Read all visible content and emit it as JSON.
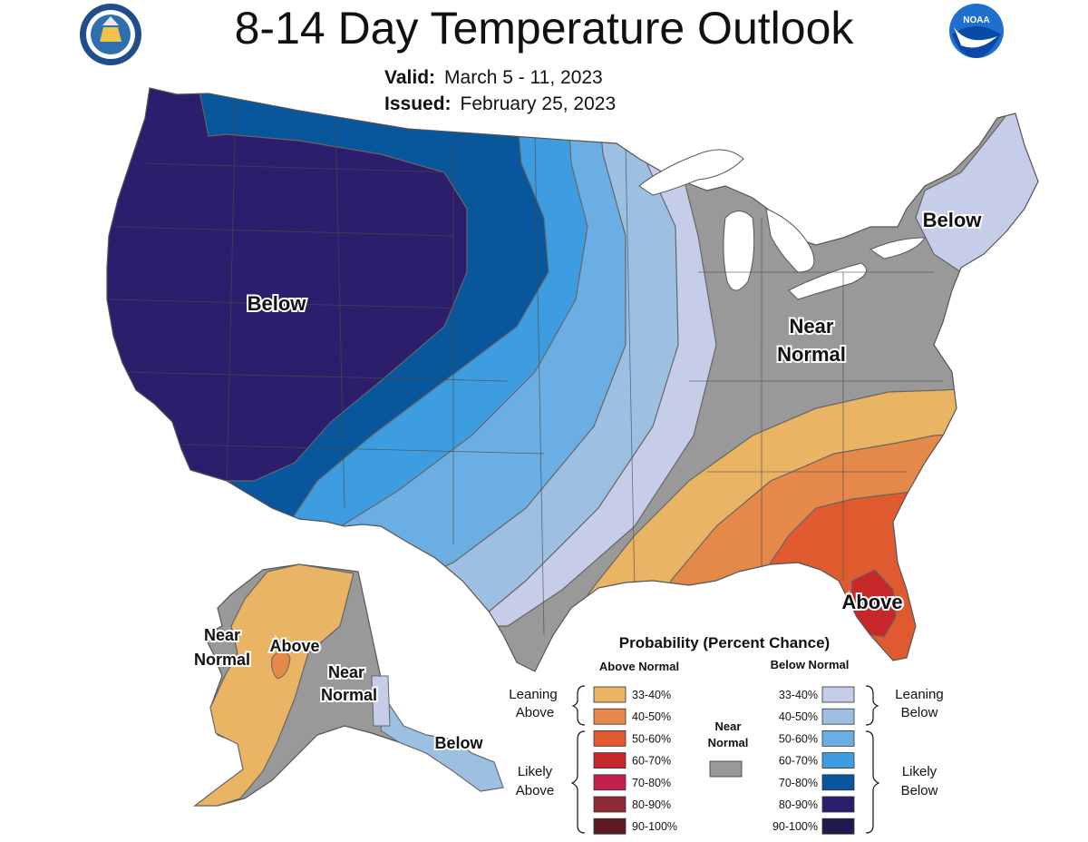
{
  "title": "8-14 Day Temperature Outlook",
  "valid": {
    "label": "Valid:",
    "value": "March 5 - 11, 2023"
  },
  "issued": {
    "label": "Issued:",
    "value": "February 25, 2023"
  },
  "logos": {
    "left": "department-of-commerce-seal",
    "right": "noaa-logo"
  },
  "map_labels": {
    "west_below": "Below",
    "northeast_below": "Below",
    "central_near_normal_1": "Near",
    "central_near_normal_2": "Normal",
    "southeast_above": "Above",
    "alaska_near_normal_w_1": "Near",
    "alaska_near_normal_w_2": "Normal",
    "alaska_above": "Above",
    "alaska_near_normal_e_1": "Near",
    "alaska_near_normal_e_2": "Normal",
    "alaska_below": "Below"
  },
  "legend": {
    "title": "Probability (Percent Chance)",
    "above_header": "Above Normal",
    "below_header": "Below Normal",
    "near_normal_1": "Near",
    "near_normal_2": "Normal",
    "near_normal_color": "#999999",
    "above_groups": {
      "leaning_1": "Leaning",
      "leaning_2": "Above",
      "likely_1": "Likely",
      "likely_2": "Above"
    },
    "below_groups": {
      "leaning_1": "Leaning",
      "leaning_2": "Below",
      "likely_1": "Likely",
      "likely_2": "Below"
    },
    "above": [
      {
        "range": "33-40%",
        "color": "#e9b463"
      },
      {
        "range": "40-50%",
        "color": "#e4894a"
      },
      {
        "range": "50-60%",
        "color": "#df5a2e"
      },
      {
        "range": "60-70%",
        "color": "#c8272a"
      },
      {
        "range": "70-80%",
        "color": "#c2204a"
      },
      {
        "range": "80-90%",
        "color": "#8d2a37"
      },
      {
        "range": "90-100%",
        "color": "#5e1a22"
      }
    ],
    "below": [
      {
        "range": "33-40%",
        "color": "#c6cde9"
      },
      {
        "range": "40-50%",
        "color": "#9dbfe2"
      },
      {
        "range": "50-60%",
        "color": "#6aaee4"
      },
      {
        "range": "60-70%",
        "color": "#3d9de0"
      },
      {
        "range": "70-80%",
        "color": "#08569b"
      },
      {
        "range": "80-90%",
        "color": "#2d1e6d"
      },
      {
        "range": "90-100%",
        "color": "#1c1a4f"
      }
    ]
  }
}
